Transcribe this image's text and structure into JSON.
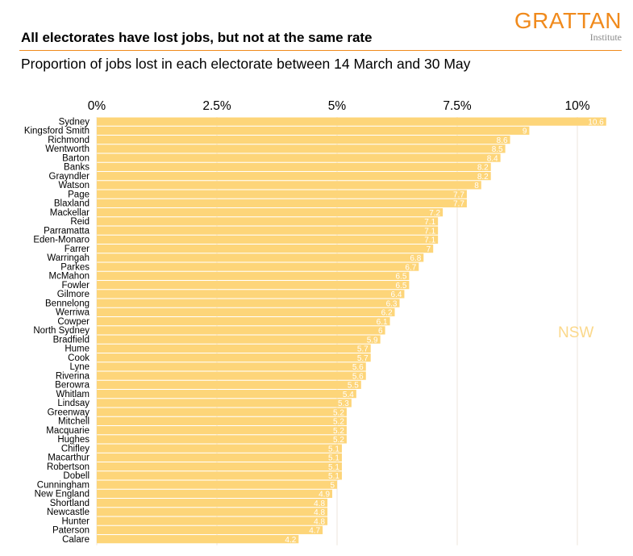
{
  "header": {
    "title": "All electorates have lost jobs, but not at the same rate",
    "subtitle": "Proportion of jobs lost in each electorate between 14 March and 30 May",
    "logo_word": "GRATTAN",
    "logo_sub": "Institute"
  },
  "colors": {
    "bar": "#fdd579",
    "gridline": "#ede6dc",
    "accent": "#f08a1c",
    "group_label": "#fbd88a"
  },
  "chart_data": {
    "type": "bar",
    "orientation": "horizontal",
    "xlim": [
      0,
      10.6
    ],
    "x_ticks": [
      0,
      2.5,
      5,
      7.5,
      10
    ],
    "x_tick_labels": [
      "0%",
      "2.5%",
      "5%",
      "7.5%",
      "10%"
    ],
    "grid": true,
    "group_label": "NSW",
    "categories": [
      "Sydney",
      "Kingsford Smith",
      "Richmond",
      "Wentworth",
      "Barton",
      "Banks",
      "Grayndler",
      "Watson",
      "Page",
      "Blaxland",
      "Mackellar",
      "Reid",
      "Parramatta",
      "Eden-Monaro",
      "Farrer",
      "Warringah",
      "Parkes",
      "McMahon",
      "Fowler",
      "Gilmore",
      "Bennelong",
      "Werriwa",
      "Cowper",
      "North Sydney",
      "Bradfield",
      "Hume",
      "Cook",
      "Lyne",
      "Riverina",
      "Berowra",
      "Whitlam",
      "Lindsay",
      "Greenway",
      "Mitchell",
      "Macquarie",
      "Hughes",
      "Chifley",
      "Macarthur",
      "Robertson",
      "Dobell",
      "Cunningham",
      "New England",
      "Shortland",
      "Newcastle",
      "Hunter",
      "Paterson",
      "Calare"
    ],
    "values": [
      10.6,
      9,
      8.6,
      8.5,
      8.4,
      8.2,
      8.2,
      8,
      7.7,
      7.7,
      7.2,
      7.1,
      7.1,
      7.1,
      7,
      6.8,
      6.7,
      6.5,
      6.5,
      6.4,
      6.3,
      6.2,
      6.1,
      6,
      5.9,
      5.7,
      5.7,
      5.6,
      5.6,
      5.5,
      5.4,
      5.3,
      5.2,
      5.2,
      5.2,
      5.2,
      5.1,
      5.1,
      5.1,
      5.1,
      5,
      4.9,
      4.8,
      4.8,
      4.8,
      4.7,
      4.2
    ],
    "value_labels": [
      "10.6",
      "9",
      "8.6",
      "8.5",
      "8.4",
      "8.2",
      "8.2",
      "8",
      "7.7",
      "7.7",
      "7.2",
      "7.1",
      "7.1",
      "7.1",
      "7",
      "6.8",
      "6.7",
      "6.5",
      "6.5",
      "6.4",
      "6.3",
      "6.2",
      "6.1",
      "6",
      "5.9",
      "5.7",
      "5.7",
      "5.6",
      "5.6",
      "5.5",
      "5.4",
      "5.3",
      "5.2",
      "5.2",
      "5.2",
      "5.2",
      "5.1",
      "5.1",
      "5.1",
      "5.1",
      "5",
      "4.9",
      "4.8",
      "4.8",
      "4.8",
      "4.7",
      "4.2"
    ]
  }
}
